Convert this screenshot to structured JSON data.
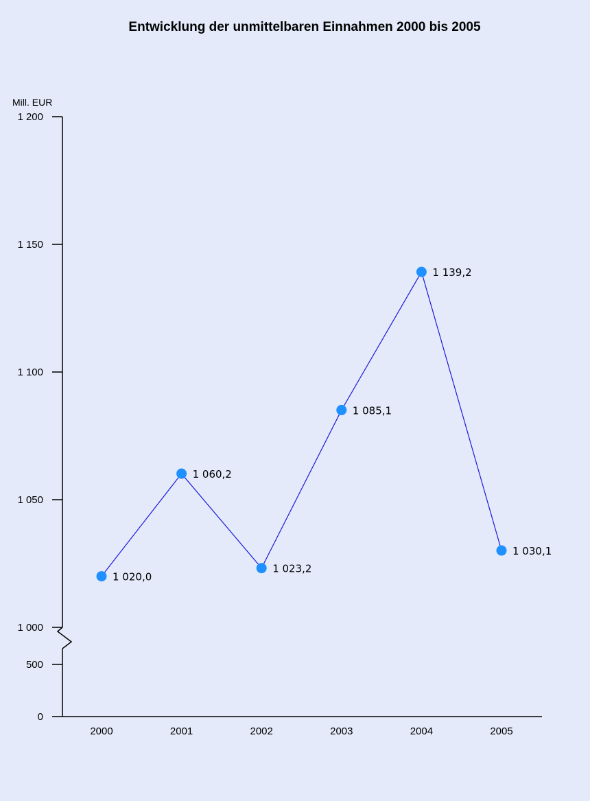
{
  "chart_data": {
    "type": "line",
    "title": "Entwicklung der unmittelbaren Einnahmen 2000 bis 2005",
    "y_unit_label": "Mill. EUR",
    "categories": [
      "2000",
      "2001",
      "2002",
      "2003",
      "2004",
      "2005"
    ],
    "series": [
      {
        "values": [
          1020.0,
          1060.2,
          1023.2,
          1085.1,
          1139.2,
          1030.1
        ],
        "labels": [
          "1 020,0",
          "1 060,2",
          "1 023,2",
          "1 085,1",
          "1 139,2",
          "1 030,1"
        ]
      }
    ],
    "y_ticks": [
      {
        "value": 0,
        "label": "0"
      },
      {
        "value": 500,
        "label": "500"
      },
      {
        "value": 1000,
        "label": "1 000"
      },
      {
        "value": 1050,
        "label": "1 050"
      },
      {
        "value": 1100,
        "label": "1 100"
      },
      {
        "value": 1150,
        "label": "1 150"
      },
      {
        "value": 1200,
        "label": "1 200"
      }
    ],
    "y_axis_break": [
      500,
      1000
    ],
    "ylim": [
      0,
      1200
    ],
    "grid": false,
    "legend": "none",
    "colors": {
      "line": "#1a1adb",
      "marker": "#1e90ff",
      "background": "#e4eaf9"
    }
  }
}
